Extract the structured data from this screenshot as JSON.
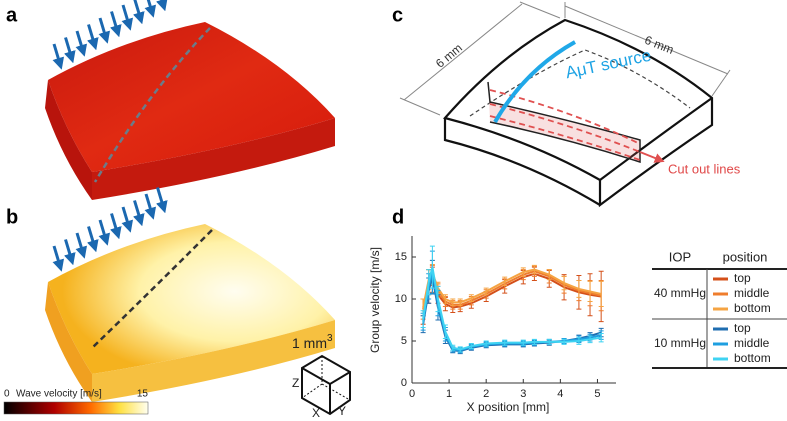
{
  "panel_labels": [
    "a",
    "b",
    "c",
    "d"
  ],
  "colorbar": {
    "label": "Wave velocity [m/s]",
    "min": "0",
    "max": "15"
  },
  "cube": {
    "label": "1 mm",
    "superscript": "3",
    "axes": [
      "Z",
      "X",
      "Y"
    ]
  },
  "diagram": {
    "width_label": "6 mm",
    "depth_label": "6 mm",
    "source_label": "AμT source",
    "cut_label": "Cut out lines"
  },
  "chart_data": {
    "type": "line",
    "xlabel": "X position [mm]",
    "ylabel": "Group velocity [m/s]",
    "xlim": [
      0,
      5.5
    ],
    "ylim": [
      0,
      17.5
    ],
    "xticks": [
      0,
      1,
      2,
      3,
      4,
      5
    ],
    "yticks": [
      0,
      5,
      10,
      15
    ],
    "x": [
      0.3,
      0.45,
      0.55,
      0.7,
      0.9,
      1.1,
      1.3,
      1.6,
      2.0,
      2.5,
      3.0,
      3.3,
      3.7,
      4.1,
      4.5,
      4.8,
      5.1
    ],
    "legend_headers": [
      "IOP",
      "position"
    ],
    "legend_groups": [
      "40 mmHg",
      "10 mmHg"
    ],
    "series": [
      {
        "name": "top",
        "color": "#d4501a",
        "values": [
          8.5,
          11.5,
          12.3,
          10.5,
          9.4,
          9.0,
          9.1,
          9.5,
          10.3,
          11.5,
          12.6,
          13.0,
          12.4,
          11.4,
          10.8,
          10.5,
          10.3
        ],
        "errors": [
          1.5,
          2,
          1.5,
          1,
          0.8,
          0.6,
          0.6,
          0.6,
          0.6,
          0.8,
          0.8,
          0.8,
          1,
          1.5,
          2,
          2.5,
          3
        ]
      },
      {
        "name": "middle",
        "color": "#ef7d2d",
        "values": [
          8.8,
          12.0,
          12.8,
          11.0,
          9.7,
          9.3,
          9.3,
          9.8,
          10.6,
          11.8,
          12.9,
          13.3,
          12.7,
          11.7,
          11.0,
          10.7,
          10.4
        ],
        "errors": [
          1.2,
          1.5,
          1.2,
          0.8,
          0.6,
          0.5,
          0.5,
          0.5,
          0.5,
          0.6,
          0.6,
          0.6,
          0.8,
          1,
          1.2,
          1.5,
          1.8
        ]
      },
      {
        "name": "bottom",
        "color": "#f5a443",
        "values": [
          9.0,
          12.3,
          13.1,
          11.3,
          10.0,
          9.6,
          9.6,
          10.1,
          10.9,
          12.1,
          13.2,
          13.5,
          12.9,
          11.9,
          11.2,
          10.9,
          10.6
        ],
        "errors": [
          1,
          1.2,
          1,
          0.7,
          0.5,
          0.4,
          0.4,
          0.4,
          0.4,
          0.5,
          0.5,
          0.5,
          0.6,
          0.8,
          1,
          1.2,
          1.5
        ]
      },
      {
        "name": "top",
        "color": "#1f6db0",
        "values": [
          7.0,
          11.0,
          12.6,
          9.0,
          5.5,
          3.9,
          3.8,
          4.2,
          4.5,
          4.6,
          4.6,
          4.7,
          4.8,
          5.0,
          5.3,
          5.6,
          6.0
        ],
        "errors": [
          1,
          1.5,
          2,
          1.5,
          0.8,
          0.3,
          0.3,
          0.3,
          0.3,
          0.3,
          0.3,
          0.3,
          0.3,
          0.3,
          0.4,
          0.4,
          0.5
        ]
      },
      {
        "name": "middle",
        "color": "#1e9fe0",
        "values": [
          7.3,
          11.5,
          13.2,
          9.5,
          5.8,
          4.0,
          3.9,
          4.3,
          4.6,
          4.7,
          4.7,
          4.8,
          4.9,
          5.0,
          5.2,
          5.4,
          5.7
        ],
        "errors": [
          1,
          1.5,
          2.5,
          1.5,
          0.8,
          0.3,
          0.3,
          0.3,
          0.3,
          0.3,
          0.3,
          0.3,
          0.3,
          0.3,
          0.4,
          0.4,
          0.5
        ]
      },
      {
        "name": "bottom",
        "color": "#3fd3f2",
        "values": [
          7.6,
          12.0,
          13.8,
          10.0,
          6.1,
          4.2,
          4.0,
          4.4,
          4.7,
          4.8,
          4.8,
          4.9,
          4.9,
          4.9,
          5.0,
          5.2,
          5.4
        ],
        "errors": [
          1,
          1.5,
          2.5,
          1.5,
          0.8,
          0.3,
          0.3,
          0.3,
          0.3,
          0.3,
          0.3,
          0.3,
          0.3,
          0.3,
          0.4,
          0.4,
          0.5
        ]
      }
    ]
  }
}
